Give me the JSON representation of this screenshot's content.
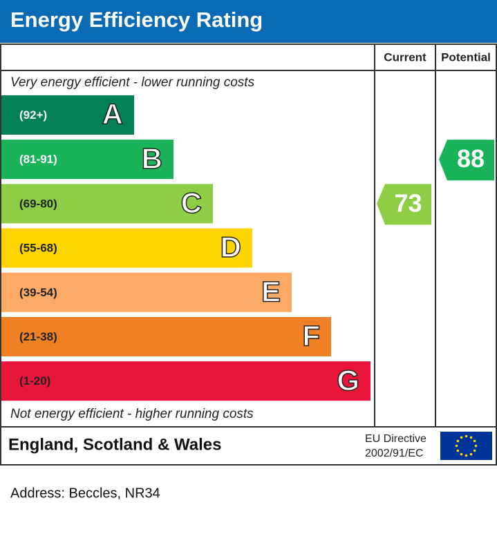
{
  "header": {
    "title": "Energy Efficiency Rating"
  },
  "columns": {
    "current": "Current",
    "potential": "Potential"
  },
  "notes": {
    "top": "Very energy efficient - lower running costs",
    "bottom": "Not energy efficient - higher running costs"
  },
  "bands": [
    {
      "range": "(92+)",
      "letter": "A",
      "color": "#008054"
    },
    {
      "range": "(81-91)",
      "letter": "B",
      "color": "#19b459"
    },
    {
      "range": "(69-80)",
      "letter": "C",
      "color": "#8dce46"
    },
    {
      "range": "(55-68)",
      "letter": "D",
      "color": "#ffd500"
    },
    {
      "range": "(39-54)",
      "letter": "E",
      "color": "#fcaa65"
    },
    {
      "range": "(21-38)",
      "letter": "F",
      "color": "#ef8023"
    },
    {
      "range": "(1-20)",
      "letter": "G",
      "color": "#e9153b"
    }
  ],
  "ratings": {
    "current": 73,
    "potential": 88
  },
  "footer": {
    "region": "England, Scotland & Wales",
    "directive": [
      "EU Directive",
      "2002/91/EC"
    ]
  },
  "address": "Address: Beccles, NR34"
}
